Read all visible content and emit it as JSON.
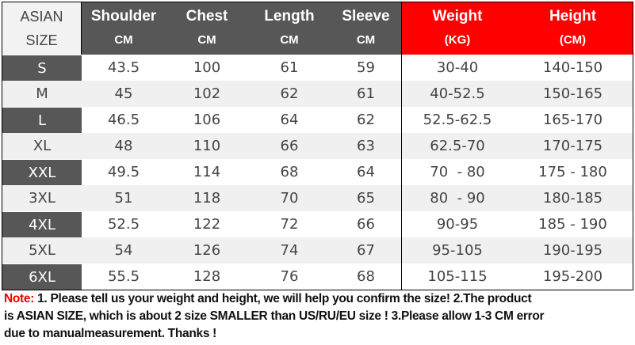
{
  "header": {
    "size": {
      "line1": "ASIAN",
      "line2": "SIZE"
    },
    "columns": [
      {
        "label": "Shoulder",
        "unit": "CM"
      },
      {
        "label": "Chest",
        "unit": "CM"
      },
      {
        "label": "Length",
        "unit": "CM"
      },
      {
        "label": "Sleeve",
        "unit": "CM"
      },
      {
        "label": "Weight",
        "unit": "(KG)"
      },
      {
        "label": "Height",
        "unit": "(CM)"
      }
    ]
  },
  "colors": {
    "accent_red": "#ff0000",
    "dark_gray": "#575757",
    "light_gray": "#f0f0f0"
  },
  "rows": [
    [
      "S",
      "43.5",
      "100",
      "61",
      "59",
      "30-40",
      "140-150"
    ],
    [
      "M",
      "45",
      "102",
      "62",
      "61",
      "40-52.5",
      "150-165"
    ],
    [
      "L",
      "46.5",
      "106",
      "64",
      "62",
      "52.5-62.5",
      "165-170"
    ],
    [
      "XL",
      "48",
      "110",
      "66",
      "63",
      "62.5-70",
      "170-175"
    ],
    [
      "XXL",
      "49.5",
      "114",
      "68",
      "64",
      "70  - 80",
      "175 - 180"
    ],
    [
      "3XL",
      "51",
      "118",
      "70",
      "65",
      "80  - 90",
      "180-185"
    ],
    [
      "4XL",
      "52.5",
      "122",
      "72",
      "66",
      "90-95",
      "185 - 190"
    ],
    [
      "5XL",
      "54",
      "126",
      "74",
      "67",
      "95-105",
      "190-195"
    ],
    [
      "6XL",
      "55.5",
      "128",
      "76",
      "68",
      "105-115",
      "195-200"
    ]
  ],
  "note": {
    "label": "Note:",
    "line1": " 1. Please tell us your weight and height, we will help you confirm the size!  2.The product",
    "line2": "is ASIAN SIZE, which is about 2 size SMALLER than US/RU/EU size ! 3.Please allow 1-3 CM error",
    "line3": "due to manualmeasurement.  Thanks !"
  }
}
